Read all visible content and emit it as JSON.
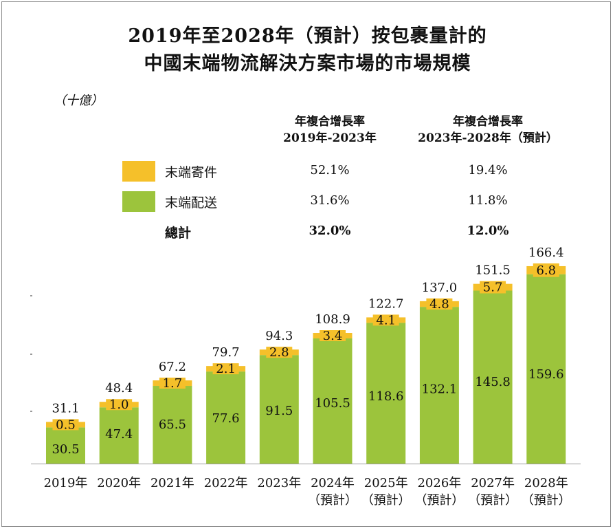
{
  "title_line1": "2019年至2028年（預計）按包裹量計的",
  "title_line2": "中國末端物流解決方案市場的市場規模",
  "unit": "（十億）",
  "cagr_headers": [
    {
      "line1": "年複合增長率",
      "line2": "2019年-2023年"
    },
    {
      "line1": "年複合增長率",
      "line2": "2023年-2028年（預計）"
    }
  ],
  "legend": [
    {
      "label": "末端寄件",
      "color": "#f5c02a",
      "cagr1": "52.1%",
      "cagr2": "19.4%"
    },
    {
      "label": "末端配送",
      "color": "#9cc43c",
      "cagr1": "31.6%",
      "cagr2": "11.8%"
    }
  ],
  "total_row": {
    "label": "總計",
    "cagr1": "32.0%",
    "cagr2": "12.0%"
  },
  "chart_data": {
    "type": "bar",
    "stacked": true,
    "categories": [
      [
        "2019年"
      ],
      [
        "2020年"
      ],
      [
        "2021年"
      ],
      [
        "2022年"
      ],
      [
        "2023年"
      ],
      [
        "2024年",
        "（預計）"
      ],
      [
        "2025年",
        "（預計）"
      ],
      [
        "2026年",
        "（預計）"
      ],
      [
        "2027年",
        "（預計）"
      ],
      [
        "2028年",
        "（預計）"
      ]
    ],
    "series": [
      {
        "name": "末端配送",
        "color": "#9cc43c",
        "values": [
          30.5,
          47.4,
          65.5,
          77.6,
          91.5,
          105.5,
          118.6,
          132.1,
          145.8,
          159.6
        ],
        "labels": [
          "30.5",
          "47.4",
          "65.5",
          "77.6",
          "91.5",
          "105.5",
          "118.6",
          "132.1",
          "145.8",
          "159.6"
        ]
      },
      {
        "name": "末端寄件",
        "color": "#f5c02a",
        "values": [
          0.5,
          1.0,
          1.7,
          2.1,
          2.8,
          3.4,
          4.1,
          4.8,
          5.7,
          6.8
        ],
        "labels": [
          "0.5",
          "1.0",
          "1.7",
          "2.1",
          "2.8",
          "3.4",
          "4.1",
          "4.8",
          "5.7",
          "6.8"
        ]
      }
    ],
    "totals": [
      31.1,
      48.4,
      67.2,
      79.7,
      94.3,
      108.9,
      122.7,
      137.0,
      151.5,
      166.4
    ],
    "total_labels": [
      "31.1",
      "48.4",
      "67.2",
      "79.7",
      "94.3",
      "108.9",
      "122.7",
      "137.0",
      "151.5",
      "166.4"
    ],
    "ylim": [
      0,
      170
    ]
  }
}
